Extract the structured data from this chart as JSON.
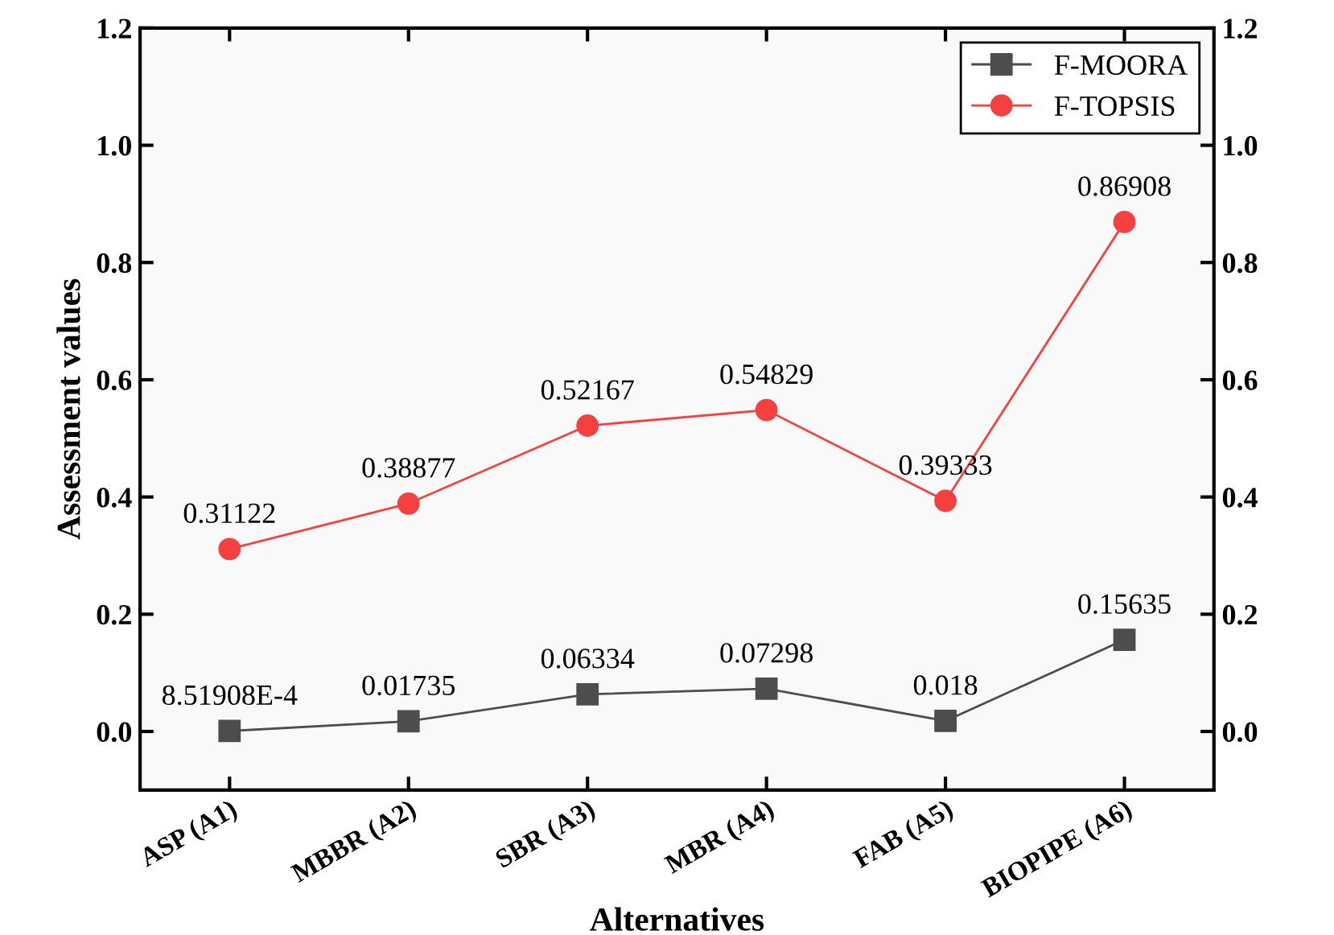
{
  "chart_data": {
    "type": "line",
    "xlabel": "Alternatives",
    "ylabel": "Assessment values",
    "categories": [
      "ASP (A1)",
      "MBBR (A2)",
      "SBR (A3)",
      "MBR (A4)",
      "FAB (A5)",
      "BIOPIPE (A6)"
    ],
    "series": [
      {
        "name": "F-MOORA",
        "color": "#4d4d4d",
        "marker": "square",
        "values": [
          0.000851908,
          0.01735,
          0.06334,
          0.07298,
          0.018,
          0.15635
        ],
        "value_labels": [
          "8.51908E-4",
          "0.01735",
          "0.06334",
          "0.07298",
          "0.018",
          "0.15635"
        ]
      },
      {
        "name": "F-TOPSIS",
        "color": "#f44040",
        "marker": "circle",
        "values": [
          0.31122,
          0.38877,
          0.52167,
          0.54829,
          0.39333,
          0.86908
        ],
        "value_labels": [
          "0.31122",
          "0.38877",
          "0.52167",
          "0.54829",
          "0.39333",
          "0.86908"
        ]
      }
    ],
    "ylim": [
      -0.1,
      1.2
    ],
    "yticks": [
      {
        "value": 0,
        "label": "0.0"
      },
      0.2,
      0.4,
      0.6,
      0.8,
      {
        "value": 1,
        "label": "1.0"
      },
      1.2
    ],
    "y2lim": [
      -0.1,
      1.2
    ],
    "y2ticks": [
      {
        "value": 0,
        "label": "0.0"
      },
      0.2,
      0.4,
      0.6,
      0.8,
      {
        "value": 1,
        "label": "1.0"
      },
      1.2
    ],
    "grid": false,
    "legend": "top right",
    "line_style": "solid"
  }
}
